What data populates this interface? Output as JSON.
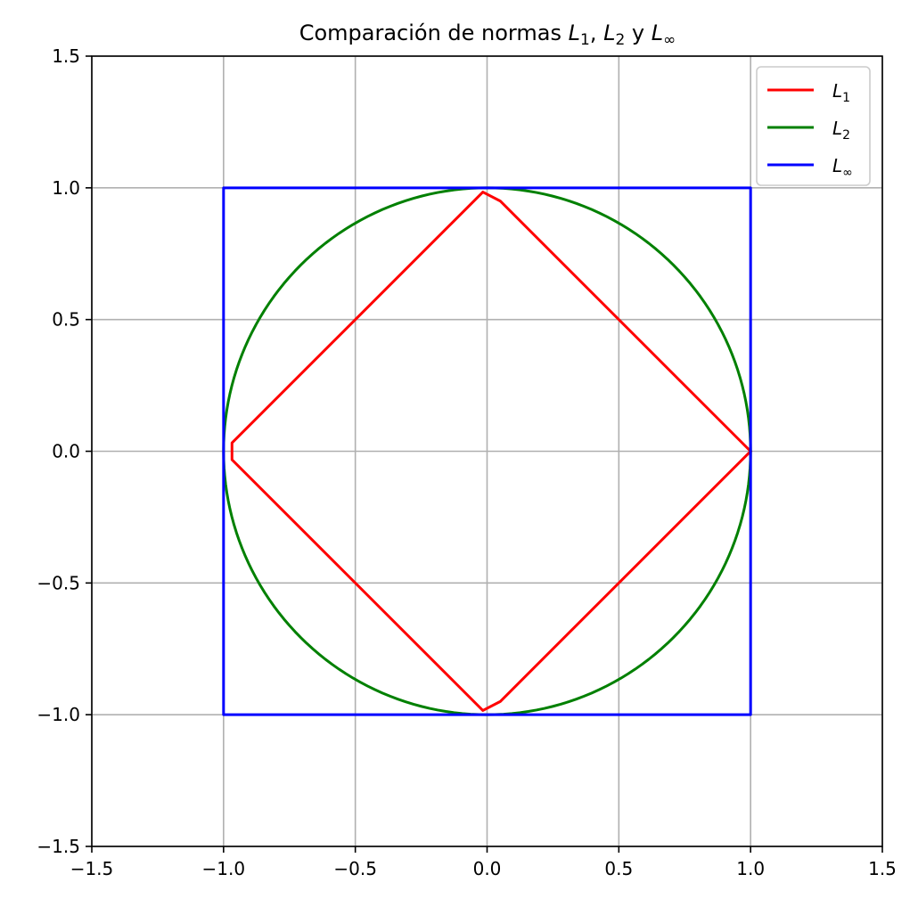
{
  "chart_data": {
    "type": "line",
    "title": {
      "prefix": "Comparación de normas ",
      "n1_base": "L",
      "n1_sub": "1",
      "sep1": ", ",
      "n2_base": "L",
      "n2_sub": "2",
      "sep2": " y ",
      "n3_base": "L",
      "n3_sub": "∞"
    },
    "xlabel": "",
    "ylabel": "",
    "xlim": [
      -1.5,
      1.5
    ],
    "ylim": [
      -1.5,
      1.5
    ],
    "x_ticks": [
      -1.5,
      -1.0,
      -0.5,
      0.0,
      0.5,
      1.0,
      1.5
    ],
    "y_ticks": [
      -1.5,
      -1.0,
      -0.5,
      0.0,
      0.5,
      1.0,
      1.5
    ],
    "x_tick_labels": [
      "−1.5",
      "−1.0",
      "−0.5",
      "0.0",
      "0.5",
      "1.0",
      "1.5"
    ],
    "y_tick_labels": [
      "−1.5",
      "−1.0",
      "−0.5",
      "0.0",
      "0.5",
      "1.0",
      "1.5"
    ],
    "grid": true,
    "legend_position": "top-right",
    "series": [
      {
        "name": "L1",
        "label_base": "L",
        "label_sub": "1",
        "color": "#ff0000",
        "points": [
          [
            1.0,
            0.0
          ],
          [
            0.05,
            0.95
          ],
          [
            -0.016,
            0.984
          ],
          [
            -0.968,
            0.032
          ],
          [
            -0.968,
            -0.032
          ],
          [
            -0.016,
            -0.984
          ],
          [
            0.05,
            -0.95
          ],
          [
            1.0,
            0.0
          ]
        ]
      },
      {
        "name": "L2",
        "label_base": "L",
        "label_sub": "2",
        "color": "#008000",
        "shape": "unit-circle",
        "radius": 1.0
      },
      {
        "name": "L∞",
        "label_base": "L",
        "label_sub": "∞",
        "color": "#0000ff",
        "points": [
          [
            1.0,
            0.0
          ],
          [
            1.0,
            1.0
          ],
          [
            -1.0,
            1.0
          ],
          [
            -1.0,
            -1.0
          ],
          [
            1.0,
            -1.0
          ],
          [
            1.0,
            0.0
          ]
        ]
      }
    ]
  }
}
